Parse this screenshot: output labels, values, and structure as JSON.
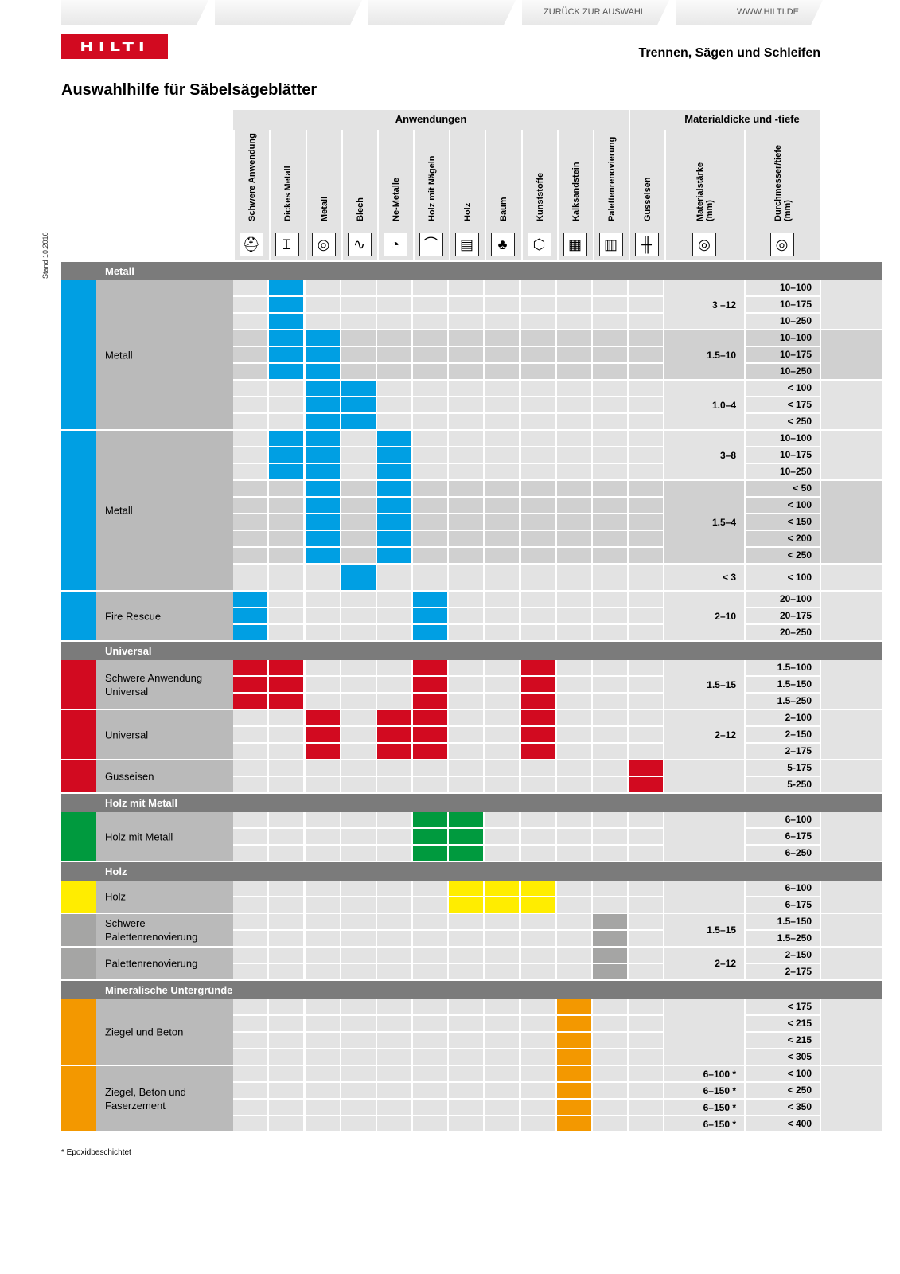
{
  "brand": {
    "logo_text": "HILTI",
    "accent": "#d20a20"
  },
  "header": {
    "section": "Trennen, Sägen und Schleifen",
    "title": "Auswahlhilfe für Säbelsägeblätter",
    "stand": "Stand 10.2016"
  },
  "table_header": {
    "group_applications": "Anwendungen",
    "group_material": "Materialdicke und -tiefe",
    "columns": [
      {
        "label": "Schwere Anwendung",
        "icon": "rescue-helmet-icon",
        "glyph": "⛑"
      },
      {
        "label": "Dickes Metall",
        "icon": "i-beam-icon",
        "glyph": "⌶"
      },
      {
        "label": "Metall",
        "icon": "pipe-icon",
        "glyph": "◎"
      },
      {
        "label": "Blech",
        "icon": "sheet-metal-icon",
        "glyph": "∿"
      },
      {
        "label": "Ne-Metalle",
        "icon": "non-ferrous-icon",
        "glyph": "◔"
      },
      {
        "label": "Holz mit Nägeln",
        "icon": "wood-nails-icon",
        "glyph": "⌒"
      },
      {
        "label": "Holz",
        "icon": "wood-icon",
        "glyph": "▤"
      },
      {
        "label": "Baum",
        "icon": "tree-icon",
        "glyph": "♣"
      },
      {
        "label": "Kunststoffe",
        "icon": "plastic-pvc-icon",
        "glyph": "⬡"
      },
      {
        "label": "Kalksandstein",
        "icon": "brick-icon",
        "glyph": "▦"
      },
      {
        "label": "Palettenrenovierung",
        "icon": "pallet-icon",
        "glyph": "▥"
      },
      {
        "label": "Gusseisen",
        "icon": "cast-iron-pipe-icon",
        "glyph": "╫"
      }
    ],
    "material_columns": [
      {
        "label": "Materialstärke (mm)",
        "icon": "tube-thickness-icon",
        "glyph": "◎"
      },
      {
        "label": "Durchmesser/tiefe (mm)",
        "icon": "tube-diameter-icon",
        "glyph": "◎"
      }
    ]
  },
  "colors": {
    "blue": "#009fe3",
    "red": "#d20a20",
    "green": "#009a3e",
    "yellow": "#ffed00",
    "gray": "#a5a5a4",
    "orange": "#f39800",
    "bar": "#7b7b7b",
    "light": "#e3e3e3",
    "mid": "#d0d0d0",
    "name": "#bababa"
  },
  "groups": [
    {
      "title": "Metall",
      "products": [
        {
          "name": "Metall",
          "color": "blue",
          "blocks": [
            {
              "mat": "3  –12",
              "rows": [
                {
                  "dia": "10–100",
                  "on": [
                    1
                  ]
                },
                {
                  "dia": "10–175",
                  "on": [
                    1
                  ]
                },
                {
                  "dia": "10–250",
                  "on": [
                    1
                  ]
                }
              ]
            },
            {
              "mat": "1.5–10",
              "rows": [
                {
                  "dia": "10–100",
                  "on": [
                    1,
                    2
                  ]
                },
                {
                  "dia": "10–175",
                  "on": [
                    1,
                    2
                  ]
                },
                {
                  "dia": "10–250",
                  "on": [
                    1,
                    2
                  ]
                }
              ]
            },
            {
              "mat": "1.0–4",
              "rows": [
                {
                  "dia": "< 100",
                  "on": [
                    2,
                    3
                  ]
                },
                {
                  "dia": "< 175",
                  "on": [
                    2,
                    3
                  ]
                },
                {
                  "dia": "< 250",
                  "on": [
                    2,
                    3
                  ]
                }
              ]
            }
          ]
        },
        {
          "name": "Metall",
          "color": "blue",
          "blocks": [
            {
              "mat": "3–8",
              "rows": [
                {
                  "dia": "10–100",
                  "on": [
                    1,
                    2,
                    4
                  ]
                },
                {
                  "dia": "10–175",
                  "on": [
                    1,
                    2,
                    4
                  ]
                },
                {
                  "dia": "10–250",
                  "on": [
                    1,
                    2,
                    4
                  ]
                }
              ]
            },
            {
              "mat": "1.5–4",
              "rows": [
                {
                  "dia": "< 50",
                  "on": [
                    2,
                    4
                  ]
                },
                {
                  "dia": "< 100",
                  "on": [
                    2,
                    4
                  ]
                },
                {
                  "dia": "< 150",
                  "on": [
                    2,
                    4
                  ]
                },
                {
                  "dia": "< 200",
                  "on": [
                    2,
                    4
                  ]
                },
                {
                  "dia": "< 250",
                  "on": [
                    2,
                    4
                  ]
                }
              ]
            },
            {
              "mat": "< 3",
              "tall": true,
              "rows": [
                {
                  "dia": "< 100",
                  "on": [
                    3
                  ]
                }
              ]
            }
          ]
        },
        {
          "name": "Fire Rescue",
          "color": "blue",
          "blocks": [
            {
              "mat": "2–10",
              "rows": [
                {
                  "dia": "20–100",
                  "on": [
                    0,
                    5
                  ]
                },
                {
                  "dia": "20–175",
                  "on": [
                    0,
                    5
                  ]
                },
                {
                  "dia": "20–250",
                  "on": [
                    0,
                    5
                  ]
                }
              ]
            }
          ]
        }
      ]
    },
    {
      "title": "Universal",
      "products": [
        {
          "name": "Schwere Anwendung Universal",
          "color": "red",
          "blocks": [
            {
              "mat": "1.5–15",
              "rows": [
                {
                  "dia": "1.5–100",
                  "on": [
                    0,
                    1,
                    5,
                    8
                  ]
                },
                {
                  "dia": "1.5–150",
                  "on": [
                    0,
                    1,
                    5,
                    8
                  ]
                },
                {
                  "dia": "1.5–250",
                  "on": [
                    0,
                    1,
                    5,
                    8
                  ]
                }
              ]
            }
          ]
        },
        {
          "name": "Universal",
          "color": "red",
          "blocks": [
            {
              "mat": "2–12",
              "rows": [
                {
                  "dia": "2–100",
                  "on": [
                    2,
                    4,
                    5,
                    8
                  ]
                },
                {
                  "dia": "2–150",
                  "on": [
                    2,
                    4,
                    5,
                    8
                  ]
                },
                {
                  "dia": "2–175",
                  "on": [
                    2,
                    4,
                    5,
                    8
                  ]
                }
              ]
            }
          ]
        },
        {
          "name": "Gusseisen",
          "color": "red",
          "blocks": [
            {
              "mat": "",
              "rows": [
                {
                  "dia": "5-175",
                  "on": [
                    11
                  ]
                },
                {
                  "dia": "5-250",
                  "on": [
                    11
                  ]
                }
              ]
            }
          ]
        }
      ]
    },
    {
      "title": "Holz mit Metall",
      "products": [
        {
          "name": "Holz mit Metall",
          "color": "green",
          "blocks": [
            {
              "mat": "",
              "rows": [
                {
                  "dia": "6–100",
                  "on": [
                    5,
                    6
                  ]
                },
                {
                  "dia": "6–175",
                  "on": [
                    5,
                    6
                  ]
                },
                {
                  "dia": "6–250",
                  "on": [
                    5,
                    6
                  ]
                }
              ]
            }
          ]
        }
      ]
    },
    {
      "title": "Holz",
      "products": [
        {
          "name": "Holz",
          "color": "yellow",
          "blocks": [
            {
              "mat": "",
              "rows": [
                {
                  "dia": "6–100",
                  "on": [
                    6,
                    7,
                    8
                  ]
                },
                {
                  "dia": "6–175",
                  "on": [
                    6,
                    7,
                    8
                  ]
                }
              ]
            }
          ]
        },
        {
          "name": "Schwere Palettenrenovierung",
          "color": "gray",
          "blocks": [
            {
              "mat": "1.5–15",
              "rows": [
                {
                  "dia": "1.5–150",
                  "on": [
                    10
                  ]
                },
                {
                  "dia": "1.5–250",
                  "on": [
                    10
                  ]
                }
              ]
            }
          ]
        },
        {
          "name": "Palettenrenovierung",
          "color": "gray",
          "blocks": [
            {
              "mat": "2–12",
              "rows": [
                {
                  "dia": "2–150",
                  "on": [
                    10
                  ]
                },
                {
                  "dia": "2–175",
                  "on": [
                    10
                  ]
                }
              ]
            }
          ]
        }
      ]
    },
    {
      "title": "Mineralische Untergründe",
      "products": [
        {
          "name": "Ziegel und Beton",
          "color": "orange",
          "blocks": [
            {
              "mat": "",
              "rows": [
                {
                  "dia": "< 175",
                  "on": [
                    9
                  ]
                },
                {
                  "dia": "< 215",
                  "on": [
                    9
                  ]
                },
                {
                  "dia": "< 215",
                  "on": [
                    9
                  ]
                },
                {
                  "dia": "< 305",
                  "on": [
                    9
                  ]
                }
              ]
            }
          ]
        },
        {
          "name": "Ziegel, Beton und Faserzement",
          "color": "orange",
          "blocks": [
            {
              "mat": "",
              "rows": [
                {
                  "dia": "< 100",
                  "mat": "6–100 *",
                  "on": [
                    9
                  ]
                },
                {
                  "dia": "< 250",
                  "mat": "6–150 *",
                  "on": [
                    9
                  ]
                },
                {
                  "dia": "< 350",
                  "mat": "6–150 *",
                  "on": [
                    9
                  ]
                },
                {
                  "dia": "< 400",
                  "mat": "6–150 *",
                  "on": [
                    9
                  ]
                }
              ]
            }
          ]
        }
      ]
    }
  ],
  "footnote": "* Epoxidbeschichtet",
  "footer": {
    "tabs": [
      "",
      "",
      "",
      "ZURÜCK ZUR AUSWAHL",
      "WWW.HILTI.DE"
    ]
  }
}
